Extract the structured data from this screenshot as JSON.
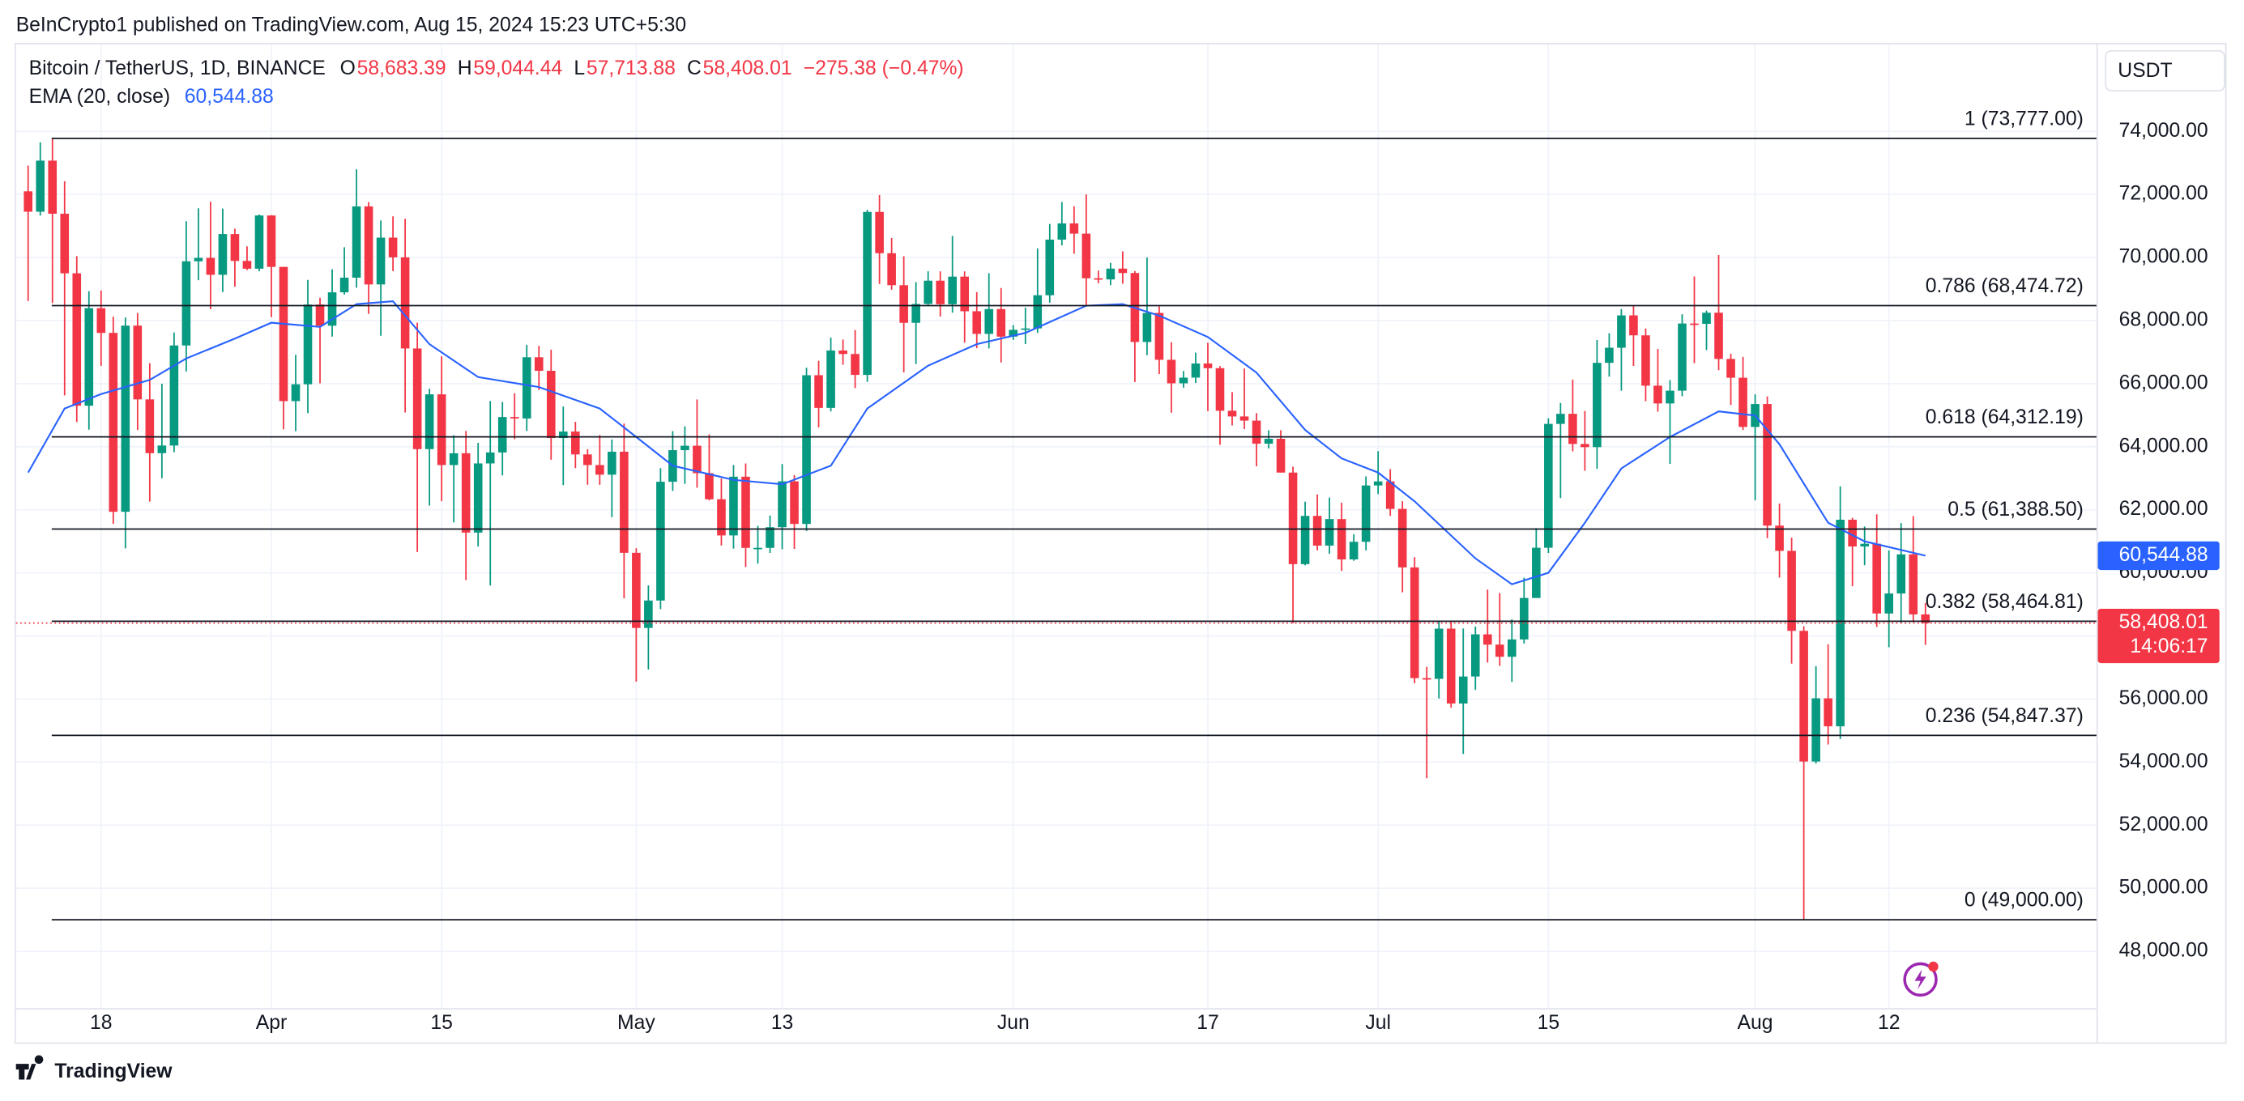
{
  "header": {
    "attribution": "BeInCrypto1 published on TradingView.com, Aug 15, 2024 15:23 UTC+5:30",
    "brand": "TradingView"
  },
  "chart_data": {
    "type": "candlestick",
    "symbol": "Bitcoin / TetherUS, 1D, BINANCE",
    "ohlc_legend": [
      {
        "key": "O",
        "text": "58,683.39"
      },
      {
        "key": "H",
        "text": "59,044.44"
      },
      {
        "key": "L",
        "text": "57,713.88"
      },
      {
        "key": "C",
        "text": "58,408.01"
      }
    ],
    "change": "−275.38 (−0.47%)",
    "currency": "USDT",
    "countdown": "14:06:17",
    "categories": [
      null,
      null,
      null,
      null,
      null,
      null,
      "18",
      null,
      null,
      null,
      null,
      null,
      null,
      null,
      null,
      null,
      null,
      null,
      null,
      null,
      "Apr",
      null,
      null,
      null,
      null,
      null,
      null,
      null,
      null,
      null,
      null,
      null,
      null,
      null,
      "15",
      null,
      null,
      null,
      null,
      null,
      null,
      null,
      null,
      null,
      null,
      null,
      null,
      null,
      null,
      null,
      "May",
      null,
      null,
      null,
      null,
      null,
      null,
      null,
      null,
      null,
      null,
      null,
      "13",
      null,
      null,
      null,
      null,
      null,
      null,
      null,
      null,
      null,
      null,
      null,
      null,
      null,
      null,
      null,
      null,
      null,
      null,
      "Jun",
      null,
      null,
      null,
      null,
      null,
      null,
      null,
      null,
      null,
      null,
      null,
      null,
      null,
      null,
      null,
      "17",
      null,
      null,
      null,
      null,
      null,
      null,
      null,
      null,
      null,
      null,
      null,
      null,
      null,
      "Jul",
      null,
      null,
      null,
      null,
      null,
      null,
      null,
      null,
      null,
      null,
      null,
      null,
      null,
      "15",
      null,
      null,
      null,
      null,
      null,
      null,
      null,
      null,
      null,
      null,
      null,
      null,
      null,
      null,
      null,
      null,
      "Aug",
      null,
      null,
      null,
      null,
      null,
      null,
      null,
      null,
      null,
      null,
      "12",
      null,
      null,
      null
    ],
    "open": [
      72099,
      71452,
      73072,
      71388,
      69499,
      65300,
      68393,
      67609,
      61937,
      67840,
      65501,
      63796,
      64038,
      67211,
      69880,
      69988,
      69452,
      70744,
      69892,
      69645,
      71333,
      69702,
      65446,
      65980,
      68508,
      67837,
      68896,
      69360,
      71620,
      69146,
      70631,
      70006,
      67116,
      63924,
      65661,
      63419,
      63793,
      61277,
      63470,
      63818,
      64941,
      64896,
      66837,
      66407,
      64276,
      64481,
      63756,
      63419,
      63114,
      63842,
      60636,
      58254,
      59123,
      62889,
      63891,
      64031,
      63161,
      62334,
      61187,
      63049,
      60792,
      60793,
      61448,
      62901,
      61552,
      66267,
      65231,
      67051,
      66940,
      66278,
      71446,
      70136,
      69122,
      67929,
      68526,
      69265,
      68518,
      69394,
      68296,
      67578,
      68364,
      67491,
      67706,
      67751,
      68804,
      70567,
      71082,
      70757,
      69342,
      69305,
      69648,
      69508,
      67321,
      68243,
      66756,
      66011,
      66191,
      66639,
      66490,
      65140,
      64960,
      64828,
      64096,
      64252,
      63180,
      60277,
      61806,
      60864,
      61706,
      60427,
      60986,
      62772,
      62900,
      62029,
      60173,
      56662,
      56639,
      58231,
      55857,
      56714,
      58051,
      57725,
      57339,
      57889,
      59204,
      60797,
      64724,
      65043,
      64087,
      63987,
      66660,
      67139,
      68165,
      67532,
      65936,
      65372,
      65777,
      67907,
      67896,
      68249,
      66784,
      66188,
      64628,
      65354,
      61498,
      60697,
      58161,
      54018,
      56022,
      55134,
      61685,
      60837,
      60923,
      58712,
      59346,
      60587,
      58683.39
    ],
    "high": [
      72915,
      73650,
      73777,
      72420,
      70044,
      68930,
      68956,
      68125,
      68100,
      68240,
      66650,
      65999,
      67622,
      71150,
      71561,
      71769,
      71552,
      70913,
      70355,
      71366,
      71342,
      69708,
      66914,
      69291,
      68725,
      69629,
      70326,
      72797,
      71758,
      71172,
      71305,
      71228,
      67932,
      65840,
      66868,
      64365,
      64499,
      64125,
      65450,
      65419,
      65695,
      67233,
      67199,
      67075,
      65275,
      64789,
      63923,
      64370,
      64228,
      64734,
      60780,
      59602,
      63320,
      64494,
      64646,
      65500,
      64390,
      62995,
      63421,
      63469,
      61490,
      61818,
      63450,
      63102,
      66504,
      66725,
      67459,
      67400,
      67700,
      71515,
      71979,
      70623,
      70041,
      69220,
      69563,
      69562,
      70687,
      69560,
      68900,
      69500,
      69033,
      67857,
      68409,
      70288,
      71063,
      71758,
      71625,
      71997,
      69584,
      69830,
      70195,
      69569,
      69999,
      68449,
      67315,
      66402,
      66983,
      67298,
      66556,
      65732,
      66482,
      65066,
      64520,
      64525,
      63369,
      62258,
      62487,
      62389,
      62225,
      61224,
      63058,
      63861,
      63288,
      62272,
      60498,
      57020,
      58475,
      58449,
      58236,
      58296,
      59470,
      59359,
      58526,
      59850,
      61420,
      64900,
      65388,
      66128,
      65133,
      67386,
      67598,
      68366,
      68474,
      67750,
      67102,
      66112,
      68200,
      69399,
      68318,
      70079,
      66950,
      66849,
      65659,
      65596,
      62198,
      61117,
      58305,
      57040,
      57736,
      62745,
      61744,
      61470,
      61858,
      60711,
      61578,
      61800,
      59044.44
    ],
    "low": [
      68620,
      71330,
      68555,
      65630,
      64780,
      64540,
      66565,
      61555,
      60775,
      64529,
      62260,
      63000,
      63825,
      66385,
      69280,
      68359,
      68903,
      69076,
      69601,
      69562,
      68110,
      64550,
      64493,
      65064,
      66011,
      67491,
      68824,
      69043,
      68210,
      67518,
      69567,
      65086,
      60660,
      62134,
      62274,
      61600,
      59768,
      60833,
      59600,
      63090,
      64237,
      64500,
      65800,
      63589,
      62783,
      63322,
      62793,
      62793,
      61765,
      59191,
      56552,
      56937,
      58848,
      62599,
      62822,
      62700,
      62300,
      60866,
      60769,
      60187,
      60292,
      60632,
      60750,
      60760,
      61330,
      64613,
      65119,
      66600,
      65857,
      66060,
      69162,
      68977,
      66356,
      66622,
      68490,
      68128,
      68250,
      67300,
      67125,
      67118,
      66670,
      67386,
      67257,
      67613,
      68567,
      70383,
      70119,
      68500,
      69184,
      69125,
      69172,
      66051,
      66902,
      66304,
      65078,
      65871,
      66022,
      65130,
      64060,
      64675,
      64559,
      63379,
      63943,
      63180,
      58402,
      60239,
      60712,
      60606,
      60063,
      60383,
      60712,
      62497,
      61806,
      59385,
      56500,
      53485,
      56018,
      55724,
      54260,
      56289,
      57157,
      57052,
      56542,
      57756,
      59204,
      60632,
      62373,
      63854,
      63238,
      63300,
      66222,
      65777,
      66559,
      65441,
      65111,
      63456,
      65600,
      66650,
      67066,
      66428,
      65323,
      64530,
      62302,
      61100,
      59850,
      57122,
      49000,
      53950,
      54558,
      54730,
      59575,
      60242,
      58286,
      57642,
      58392,
      58433,
      57713.88
    ],
    "close": [
      71452,
      73072,
      71388,
      69499,
      65300,
      68393,
      67609,
      61937,
      67840,
      65501,
      63796,
      64038,
      67211,
      69880,
      69988,
      69452,
      70744,
      69892,
      69645,
      71333,
      69702,
      65446,
      65980,
      68508,
      67837,
      68896,
      69360,
      71620,
      69146,
      70631,
      70006,
      67116,
      63924,
      65661,
      63419,
      63793,
      61277,
      63470,
      63818,
      64941,
      64896,
      66837,
      66407,
      64276,
      64481,
      63756,
      63419,
      63114,
      63842,
      60636,
      58254,
      59123,
      62889,
      63891,
      64031,
      63161,
      62334,
      61187,
      63049,
      60792,
      60793,
      61448,
      62901,
      61552,
      66267,
      65231,
      67051,
      66940,
      66278,
      71446,
      70136,
      69122,
      67929,
      68526,
      69265,
      68518,
      69394,
      68296,
      67578,
      68364,
      67491,
      67706,
      67751,
      68804,
      70567,
      71082,
      70757,
      69342,
      69305,
      69648,
      69508,
      67321,
      68243,
      66756,
      66011,
      66191,
      66639,
      66490,
      65140,
      64960,
      64828,
      64096,
      64252,
      63180,
      60277,
      61806,
      60864,
      61706,
      60427,
      60986,
      62772,
      62900,
      62029,
      60173,
      56662,
      56639,
      58231,
      55857,
      56714,
      58051,
      57725,
      57339,
      57889,
      59204,
      60797,
      64724,
      65043,
      64087,
      63987,
      66660,
      67139,
      68165,
      67532,
      65936,
      65372,
      65777,
      67907,
      67896,
      68249,
      66784,
      66188,
      64628,
      65354,
      61498,
      60697,
      58161,
      54018,
      56022,
      55134,
      61685,
      60837,
      60923,
      58712,
      59346,
      60587,
      58683.39,
      58408.01
    ],
    "up_color": "#089981",
    "down_color": "#f23645",
    "ema": {
      "name": "EMA (20, close)",
      "color": "#2962ff",
      "value_label": "60,544.88",
      "x": [
        0,
        3,
        6,
        10,
        13,
        17,
        20,
        24,
        27,
        30,
        33,
        37,
        42,
        47,
        50,
        53,
        58,
        62,
        66,
        69,
        74,
        78,
        82,
        87,
        90,
        93,
        97,
        101,
        105,
        108,
        111,
        114,
        119,
        122,
        125,
        128,
        131,
        135,
        139,
        142,
        144,
        148,
        151,
        156
      ],
      "values": [
        63180,
        65210,
        65670,
        66120,
        66800,
        67430,
        67930,
        67800,
        68520,
        68610,
        67250,
        66210,
        65890,
        65210,
        64310,
        63400,
        62950,
        62810,
        63400,
        65210,
        66570,
        67250,
        67610,
        68470,
        68520,
        68160,
        67480,
        66350,
        64530,
        63630,
        63180,
        62270,
        60460,
        59640,
        60000,
        61590,
        63310,
        64310,
        65120,
        64990,
        64080,
        61590,
        61000,
        60544.88
      ]
    },
    "fib_levels": [
      {
        "value": 73777,
        "label": "1 (73,777.00)"
      },
      {
        "value": 68474.72,
        "label": "0.786 (68,474.72)"
      },
      {
        "value": 64312.19,
        "label": "0.618 (64,312.19)"
      },
      {
        "value": 61388.5,
        "label": "0.5 (61,388.50)"
      },
      {
        "value": 58464.81,
        "label": "0.382 (58,464.81)"
      },
      {
        "value": 54847.37,
        "label": "0.236 (54,847.37)"
      },
      {
        "value": 49000,
        "label": "0 (49,000.00)"
      }
    ],
    "ylim": [
      46200,
      76760
    ],
    "yticks": [
      {
        "value": 48000,
        "label": "48,000.00"
      },
      {
        "value": 50000,
        "label": "50,000.00"
      },
      {
        "value": 52000,
        "label": "52,000.00"
      },
      {
        "value": 54000,
        "label": "54,000.00"
      },
      {
        "value": 56000,
        "label": "56,000.00"
      },
      {
        "value": 58000,
        "label": "58,000.00"
      },
      {
        "value": 60000,
        "label": "60,000.00"
      },
      {
        "value": 62000,
        "label": "62,000.00"
      },
      {
        "value": 64000,
        "label": "64,000.00"
      },
      {
        "value": 66000,
        "label": "66,000.00"
      },
      {
        "value": 68000,
        "label": "68,000.00"
      },
      {
        "value": 70000,
        "label": "70,000.00"
      },
      {
        "value": 72000,
        "label": "72,000.00"
      },
      {
        "value": 74000,
        "label": "74,000.00"
      }
    ],
    "grid": true
  }
}
